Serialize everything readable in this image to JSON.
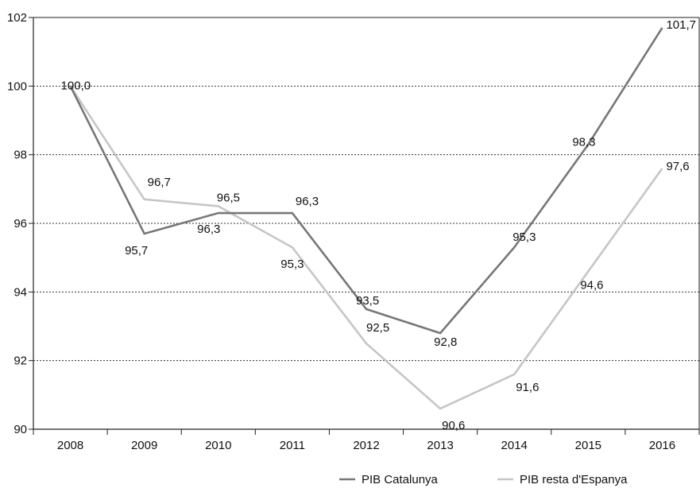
{
  "chart_data": {
    "type": "line",
    "x": [
      "2008",
      "2009",
      "2010",
      "2011",
      "2012",
      "2013",
      "2014",
      "2015",
      "2016"
    ],
    "ylim": [
      90,
      102
    ],
    "yticks": [
      "90",
      "92",
      "94",
      "96",
      "98",
      "100",
      "102"
    ],
    "grid": "horizontal dotted",
    "legend_position": "bottom-right",
    "series": [
      {
        "name": "PIB Catalunya",
        "color": "#777777",
        "values": [
          100.0,
          95.7,
          96.3,
          96.3,
          93.5,
          92.8,
          95.3,
          98.3,
          101.7
        ],
        "labels": [
          "100,0",
          "95,7",
          "96,3",
          "96,3",
          "93,5",
          "92,8",
          "95,3",
          "98,3",
          "101,7"
        ]
      },
      {
        "name": "PIB resta d'Espanya",
        "color": "#c6c6c6",
        "values": [
          100.0,
          96.7,
          96.5,
          95.3,
          92.5,
          90.6,
          91.6,
          94.6,
          97.6
        ],
        "labels": [
          "100,0",
          "96,7",
          "96,5",
          "95,3",
          "92,5",
          "90,6",
          "91,6",
          "94,6",
          "97,6"
        ]
      }
    ]
  }
}
